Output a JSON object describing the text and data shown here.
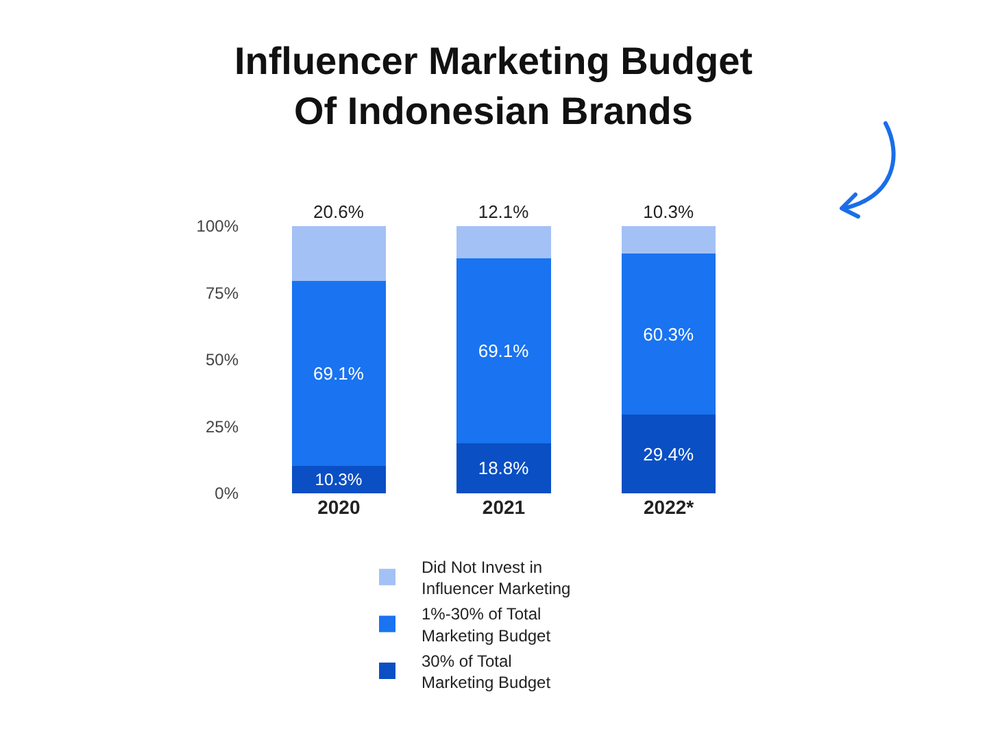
{
  "chart_data": {
    "type": "bar",
    "title": "Influencer Marketing Budget\nOf Indonesian Brands",
    "stacked": true,
    "legend": "bottom",
    "grid": false,
    "categories": [
      "2020",
      "2021",
      "2022*"
    ],
    "ylim": [
      0,
      100
    ],
    "yticks": [
      {
        "value": 0,
        "label": "0%"
      },
      {
        "value": 25,
        "label": "25%"
      },
      {
        "value": 50,
        "label": "50%"
      },
      {
        "value": 75,
        "label": "75%"
      },
      {
        "value": 100,
        "label": "100%"
      }
    ],
    "series": [
      {
        "name": "30% of Total\nMarketing Budget",
        "color": "#0a4fc4",
        "values": [
          10.3,
          18.8,
          29.4
        ],
        "value_labels": [
          "10.3%",
          "18.8%",
          "29.4%"
        ]
      },
      {
        "name": "1%-30% of Total\nMarketing Budget",
        "color": "#1a73f0",
        "values": [
          69.1,
          69.1,
          60.3
        ],
        "value_labels": [
          "69.1%",
          "69.1%",
          "60.3%"
        ]
      },
      {
        "name": "Did Not Invest in\nInfluencer Marketing",
        "color": "#a4c1f5",
        "values": [
          20.6,
          12.1,
          10.3
        ],
        "value_labels": [
          "20.6%",
          "12.1%",
          "10.3%"
        ]
      }
    ]
  }
}
